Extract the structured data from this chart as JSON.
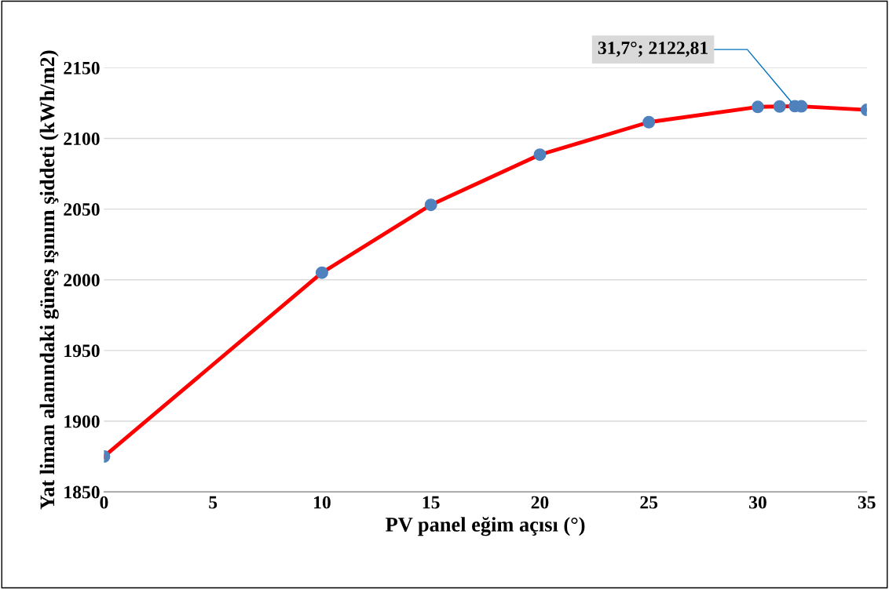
{
  "chart_data": {
    "type": "line",
    "xlabel": "PV panel eğim açısı (°)",
    "ylabel": "Yat liman alanındaki güneş ışınım şiddeti (kWh/m2)",
    "series": [
      {
        "color": "#ff0000",
        "x": [
          0,
          10,
          15,
          20,
          25,
          30,
          31,
          31.7,
          32,
          35
        ],
        "values": [
          1875,
          2005,
          2053,
          2088.5,
          2111.5,
          2122.3,
          2122.6,
          2122.81,
          2122.7,
          2120.2
        ],
        "colors": [
          "#4f81bd",
          "#4f81bd",
          "#4f81bd",
          "#4f81bd",
          "#4f81bd",
          "#4f81bd",
          "#4f81bd",
          "#4f81bd",
          "#4f81bd",
          "#4f81bd"
        ]
      }
    ],
    "marker": "circle",
    "line_style": "solid",
    "xlim": [
      0,
      35
    ],
    "xticks": [
      0,
      5,
      10,
      15,
      20,
      25,
      30,
      35
    ],
    "ylim": [
      1850,
      2150
    ],
    "yticks": [
      1850,
      1900,
      1950,
      2000,
      2050,
      2100,
      2150
    ],
    "grid": "y",
    "annotations": [
      {
        "text": "31,7°; 2122,81",
        "x": 31.7,
        "y": 2122.81
      }
    ]
  }
}
